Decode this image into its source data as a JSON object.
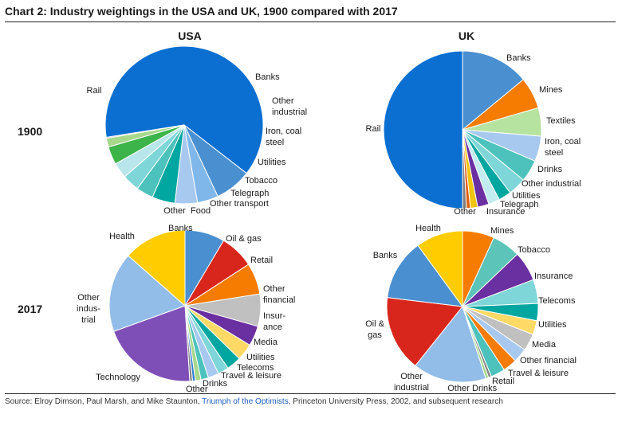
{
  "title": "Chart 2: Industry weightings in the USA and UK, 1900 compared with 2017",
  "source": {
    "prefix": "Source: Elroy Dimson, Paul Marsh, and Mike Staunton, ",
    "link": "Triumph of the Optimists",
    "suffix": ", Princeton University Press, 2002, and subsequent research"
  },
  "columns": [
    "USA",
    "UK"
  ],
  "rows": [
    "1900",
    "2017"
  ],
  "chart_data": [
    {
      "type": "pie",
      "country": "USA",
      "year": "1900",
      "slices": [
        {
          "label": "Rail",
          "value": 63,
          "color": "#0a6fd1"
        },
        {
          "label": "Banks",
          "value": 7.5,
          "color": "#4a90d0"
        },
        {
          "label": "Other industrial",
          "value": 4.3,
          "color": "#7fb7ea"
        },
        {
          "label": "Iron, coal steel",
          "value": 4.6,
          "color": "#a8c9ef"
        },
        {
          "label": "Utilities",
          "value": 4.7,
          "color": "#00a6a0"
        },
        {
          "label": "",
          "value": 3.5,
          "color": "#4dc2bc"
        },
        {
          "label": "Tobacco",
          "value": 3.5,
          "color": "#7fd6d8"
        },
        {
          "label": "Telegraph",
          "value": 3.2,
          "color": "#b9e6ea"
        },
        {
          "label": "Other transport",
          "value": 3.7,
          "color": "#3db44a"
        },
        {
          "label": "Food",
          "value": 1.8,
          "color": "#a7d88c"
        },
        {
          "label": "Other",
          "value": 0.2,
          "color": "#6f6f6f"
        }
      ]
    },
    {
      "type": "pie",
      "country": "UK",
      "year": "1900",
      "slices": [
        {
          "label": "Rail",
          "value": 50,
          "color": "#0a6fd1"
        },
        {
          "label": "Banks",
          "value": 14,
          "color": "#4a90d0"
        },
        {
          "label": "Mines",
          "value": 6.5,
          "color": "#f57c00"
        },
        {
          "label": "Textiles",
          "value": 5.8,
          "color": "#b6e3a0"
        },
        {
          "label": "Iron, coal steel",
          "value": 5.2,
          "color": "#a8c9ef"
        },
        {
          "label": "Drinks",
          "value": 4.5,
          "color": "#4dc2bc"
        },
        {
          "label": "Other industrial",
          "value": 3.7,
          "color": "#7fd6d8"
        },
        {
          "label": "Utilities",
          "value": 2.6,
          "color": "#00a6a0"
        },
        {
          "label": "Telegraph",
          "value": 2.3,
          "color": "#c2ecf0"
        },
        {
          "label": "Insurance",
          "value": 2.3,
          "color": "#6a2fa0"
        },
        {
          "label": "",
          "value": 1.5,
          "color": "#f1c40f"
        },
        {
          "label": "",
          "value": 0.8,
          "color": "#e06010"
        },
        {
          "label": "Other",
          "value": 0.8,
          "color": "#808080"
        }
      ]
    },
    {
      "type": "pie",
      "country": "USA",
      "year": "2017",
      "slices": [
        {
          "label": "Banks",
          "value": 8.5,
          "color": "#4a90d0"
        },
        {
          "label": "Oil & gas",
          "value": 7.3,
          "color": "#d9261c"
        },
        {
          "label": "Retail",
          "value": 6.7,
          "color": "#f57c00"
        },
        {
          "label": "Other financial",
          "value": 6.9,
          "color": "#c0c0c0"
        },
        {
          "label": "Insur-ance",
          "value": 4.3,
          "color": "#6a2fa0"
        },
        {
          "label": "Media",
          "value": 3.6,
          "color": "#ffd966"
        },
        {
          "label": "Utilities",
          "value": 3.1,
          "color": "#00a6a0"
        },
        {
          "label": "Telecoms",
          "value": 2.3,
          "color": "#7fd6d8"
        },
        {
          "label": "Travel & leisure",
          "value": 2.3,
          "color": "#a8c9ef"
        },
        {
          "label": "Drinks",
          "value": 1.6,
          "color": "#4dc2bc"
        },
        {
          "label": "",
          "value": 1.2,
          "color": "#a7d88c"
        },
        {
          "label": "",
          "value": 0.6,
          "color": "#2f7fd0"
        },
        {
          "label": "Other",
          "value": 0.6,
          "color": "#888888"
        },
        {
          "label": "Technology",
          "value": 20.5,
          "color": "#7f4fb8"
        },
        {
          "label": "Other indus-trial",
          "value": 17,
          "color": "#92bde9"
        },
        {
          "label": "Health",
          "value": 13.5,
          "color": "#ffcc00"
        }
      ]
    },
    {
      "type": "pie",
      "country": "UK",
      "year": "2017",
      "slices": [
        {
          "label": "Mines",
          "value": 6.5,
          "color": "#f57c00"
        },
        {
          "label": "Tobacco",
          "value": 5.8,
          "color": "#5cc4b8"
        },
        {
          "label": "Insurance",
          "value": 6.1,
          "color": "#6a2fa0"
        },
        {
          "label": "Telecoms",
          "value": 4.9,
          "color": "#7fd6d8"
        },
        {
          "label": "Utilities",
          "value": 3.5,
          "color": "#00a6a0"
        },
        {
          "label": "Media",
          "value": 2.9,
          "color": "#ffd966"
        },
        {
          "label": "Other financial",
          "value": 3.5,
          "color": "#c0c0c0"
        },
        {
          "label": "Travel & leisure",
          "value": 2.9,
          "color": "#a8c9ef"
        },
        {
          "label": "Retail",
          "value": 2.9,
          "color": "#f57c00"
        },
        {
          "label": "Drinks",
          "value": 2.9,
          "color": "#4dc2bc"
        },
        {
          "label": "Other",
          "value": 0.6,
          "color": "#888888"
        },
        {
          "label": "",
          "value": 0.6,
          "color": "#a7d88c"
        },
        {
          "label": "Other industrial",
          "value": 15,
          "color": "#92bde9"
        },
        {
          "label": "Oil & gas",
          "value": 15.5,
          "color": "#d9261c"
        },
        {
          "label": "Banks",
          "value": 12.5,
          "color": "#4a90d0"
        },
        {
          "label": "Health",
          "value": 9.6,
          "color": "#ffcc00"
        }
      ]
    }
  ]
}
